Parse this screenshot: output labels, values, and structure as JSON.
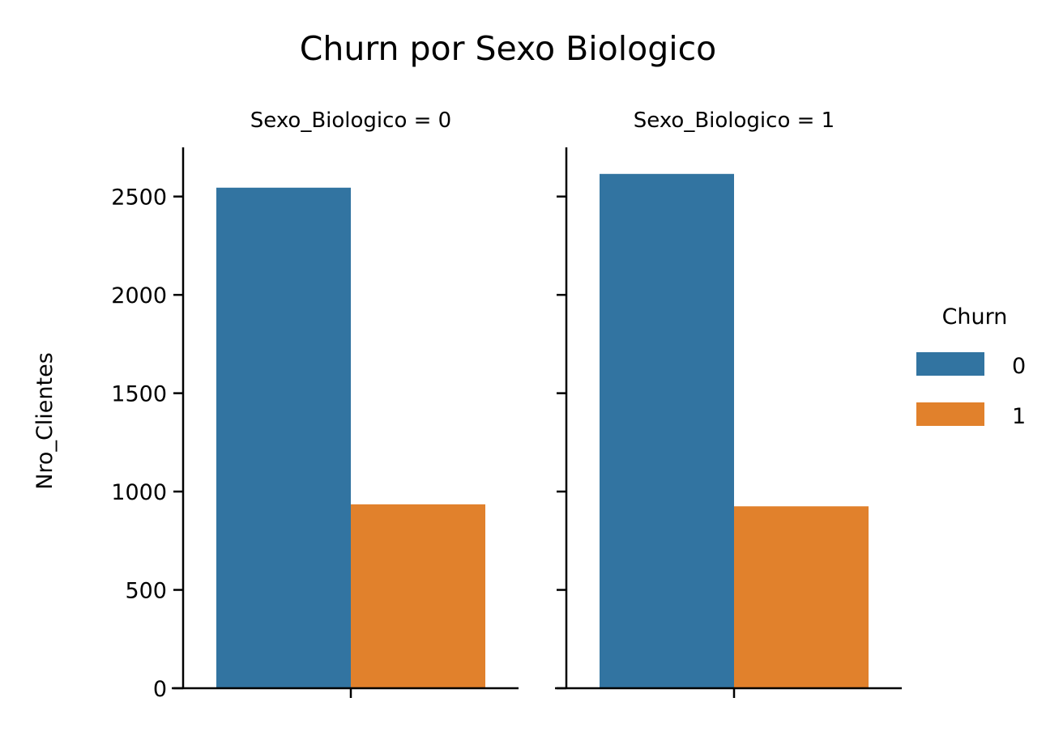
{
  "chart_data": {
    "type": "bar",
    "title": "Churn por Sexo Biologico",
    "ylabel": "Nro_Clientes",
    "ylim": [
      0,
      2750
    ],
    "yticks": [
      0,
      500,
      1000,
      1500,
      2000,
      2500
    ],
    "legend": {
      "title": "Churn",
      "placement": "right",
      "entries": [
        {
          "label": "0",
          "color": "#3274a1"
        },
        {
          "label": "1",
          "color": "#e1812c"
        }
      ]
    },
    "facets": [
      {
        "title": "Sexo_Biologico = 0",
        "series": [
          {
            "name": "0",
            "value": 2545
          },
          {
            "name": "1",
            "value": 935
          }
        ]
      },
      {
        "title": "Sexo_Biologico = 1",
        "series": [
          {
            "name": "0",
            "value": 2615
          },
          {
            "name": "1",
            "value": 925
          }
        ]
      }
    ]
  }
}
